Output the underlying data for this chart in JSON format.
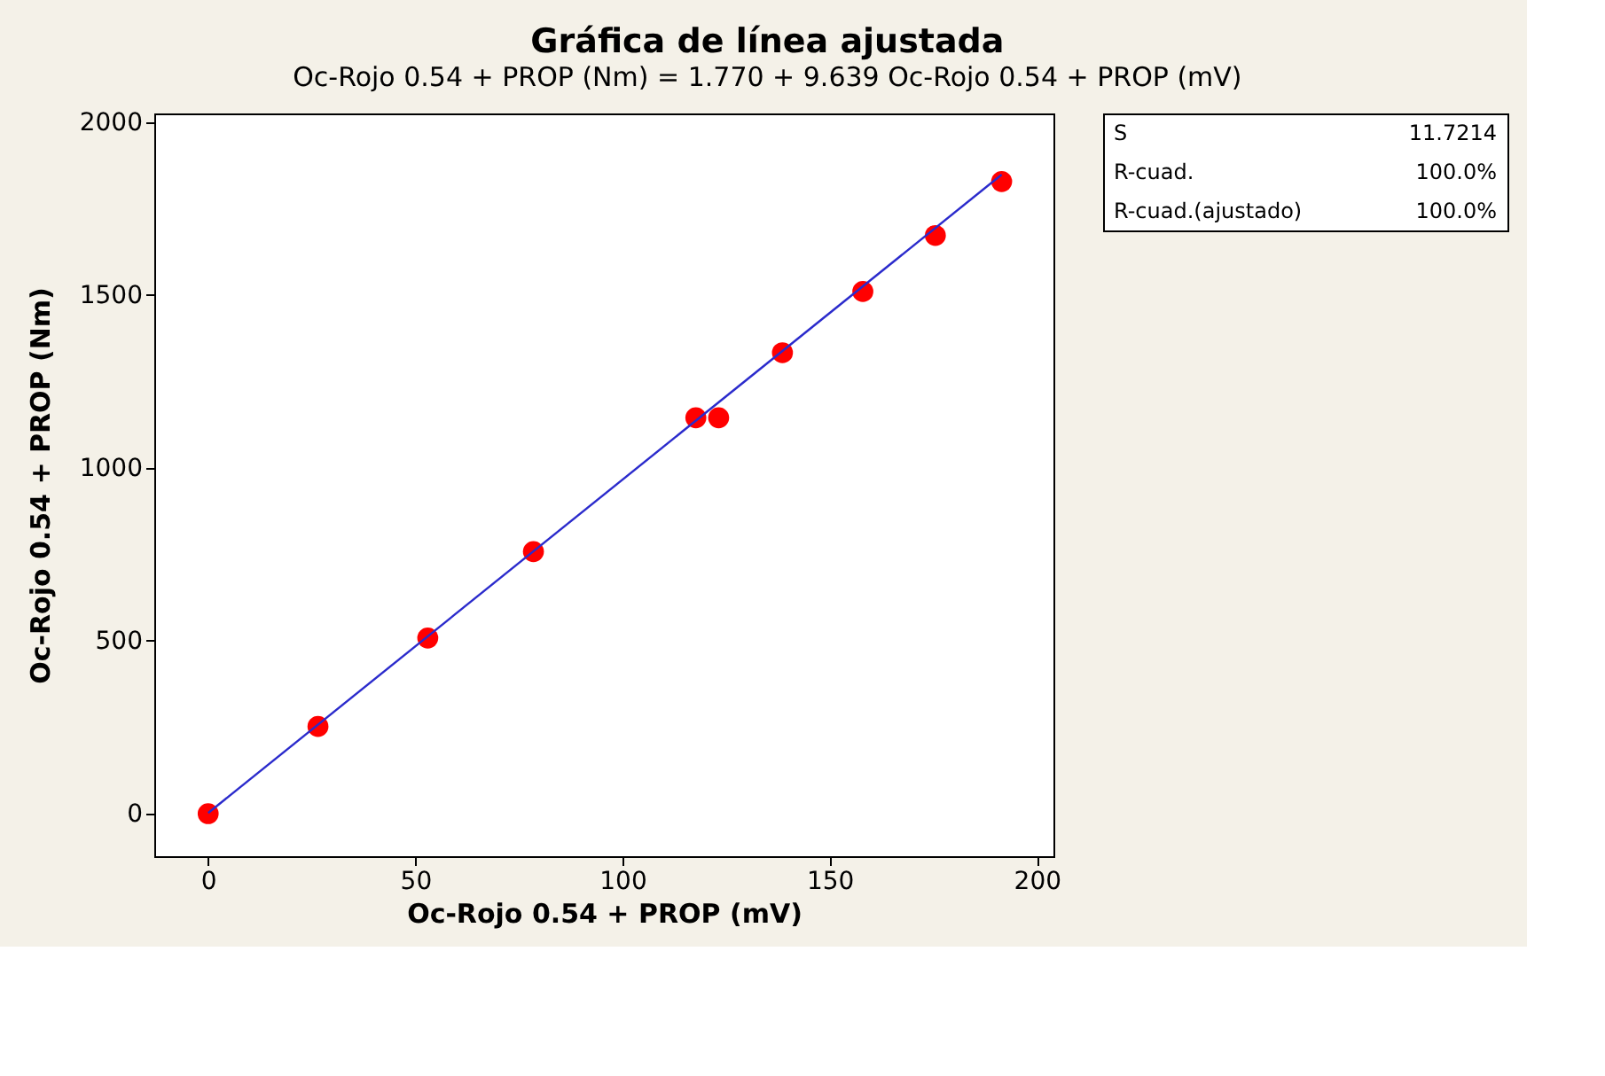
{
  "chart_data": {
    "type": "scatter",
    "title": "Gráfica de línea ajustada",
    "subtitle": "Oc-Rojo 0.54 + PROP (Nm) =  1.770 + 9.639 Oc-Rojo 0.54 + PROP (mV)",
    "xlabel": "Oc-Rojo 0.54 + PROP (mV)",
    "ylabel": "Oc-Rojo 0.54 + PROP (Nm)",
    "x": [
      0,
      26.5,
      53,
      78.5,
      117.7,
      123.2,
      138.6,
      158,
      175.5,
      191.5
    ],
    "series": [
      {
        "color": "#ff0000",
        "marker": "circle",
        "values": [
          0,
          252,
          508,
          758,
          1145,
          1145,
          1333,
          1510,
          1672,
          1828
        ]
      },
      {
        "type": "line",
        "marker": "none",
        "color": "#2b2bcc",
        "x": [
          0,
          191.5
        ],
        "values": [
          2,
          1848
        ]
      }
    ],
    "xlim": [
      -13,
      204
    ],
    "ylim": [
      -123,
      2025
    ],
    "xticks": [
      0,
      50,
      100,
      150,
      200
    ],
    "yticks": [
      0,
      500,
      1000,
      1500,
      2000
    ],
    "annotations": [
      "S",
      "11.7214",
      "R-cuad.",
      "100.0%",
      "R-cuad.(ajustado)",
      "100.0%"
    ]
  }
}
